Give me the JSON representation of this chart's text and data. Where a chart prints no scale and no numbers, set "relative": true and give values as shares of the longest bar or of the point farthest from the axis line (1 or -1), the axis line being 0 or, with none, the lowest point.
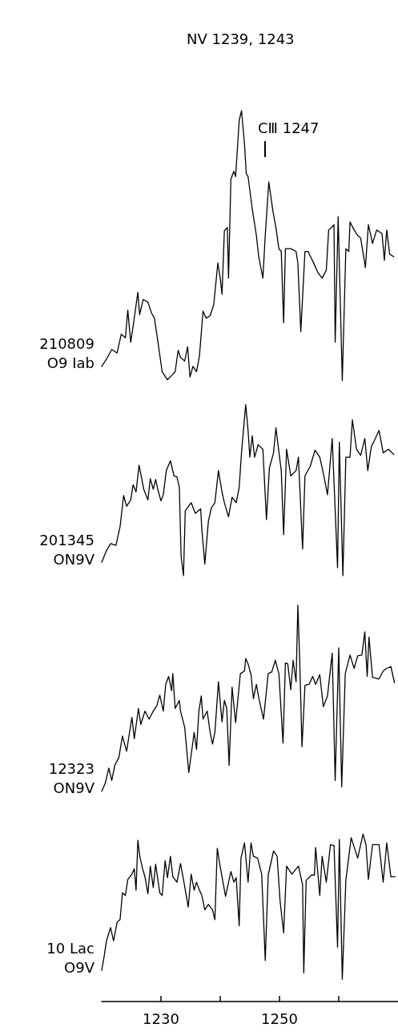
{
  "chart_data": {
    "type": "line",
    "relative": true,
    "title": "NⅤ 1239, 1243",
    "annotations": [
      "CⅢ 1247"
    ],
    "xlim": [
      1220,
      1270
    ],
    "xticks": [
      1230,
      {
        "value": 1240,
        "label": null
      },
      1250,
      {
        "value": 1260,
        "label": null
      }
    ],
    "grid": false,
    "legend": false,
    "marker": "none",
    "line_style": "solid",
    "series": [
      {
        "name": "210809\nO9 Iab",
        "color": "#000000",
        "x": [
          1220.0,
          1220.8,
          1221.7,
          1222.6,
          1223.3,
          1224.0,
          1224.4,
          1224.9,
          1225.3,
          1226.1,
          1226.4,
          1227.0,
          1227.8,
          1228.4,
          1228.9,
          1229.5,
          1230.2,
          1231.1,
          1232.0,
          1232.4,
          1232.9,
          1233.3,
          1234.0,
          1234.5,
          1234.9,
          1235.4,
          1236.0,
          1236.5,
          1237.1,
          1237.6,
          1238.3,
          1238.9,
          1239.6,
          1240.0,
          1240.3,
          1240.7,
          1241.2,
          1241.4,
          1241.8,
          1242.3,
          1242.6,
          1243.2,
          1243.6,
          1244.1,
          1244.4,
          1244.7,
          1245.4,
          1246.1,
          1246.5,
          1247.2,
          1247.6,
          1248.2,
          1248.9,
          1249.4,
          1249.9,
          1250.3,
          1250.7,
          1251.0,
          1251.9,
          1252.8,
          1253.1,
          1253.6,
          1254.3,
          1254.8,
          1255.7,
          1256.5,
          1257.2,
          1257.9,
          1258.3,
          1258.8,
          1259.2,
          1259.4,
          1259.9,
          1260.6,
          1261.2,
          1261.7,
          1261.9,
          1262.6,
          1263.2,
          1263.7,
          1264.5,
          1265.0,
          1265.7,
          1266.4,
          1267.3,
          1267.7,
          1268.1,
          1268.6,
          1269.3
        ],
        "values": [
          0.713,
          0.721,
          0.732,
          0.728,
          0.749,
          0.745,
          0.776,
          0.74,
          0.758,
          0.796,
          0.771,
          0.788,
          0.785,
          0.773,
          0.767,
          0.74,
          0.707,
          0.698,
          0.704,
          0.707,
          0.731,
          0.723,
          0.719,
          0.735,
          0.701,
          0.713,
          0.707,
          0.725,
          0.775,
          0.767,
          0.77,
          0.782,
          0.829,
          0.812,
          0.794,
          0.865,
          0.869,
          0.812,
          0.923,
          0.932,
          0.926,
          0.989,
          1.0,
          0.962,
          0.929,
          0.926,
          0.89,
          0.86,
          0.836,
          0.812,
          0.86,
          0.92,
          0.887,
          0.869,
          0.845,
          0.842,
          0.762,
          0.845,
          0.845,
          0.842,
          0.829,
          0.752,
          0.842,
          0.842,
          0.83,
          0.818,
          0.812,
          0.821,
          0.866,
          0.869,
          0.872,
          0.74,
          0.881,
          0.697,
          0.845,
          0.842,
          0.875,
          0.866,
          0.86,
          0.857,
          0.824,
          0.872,
          0.851,
          0.866,
          0.862,
          0.832,
          0.866,
          0.839,
          0.836
        ]
      },
      {
        "name": "201345\nON9Ⅴ",
        "color": "#000000",
        "x": [
          1220.0,
          1220.8,
          1221.5,
          1222.4,
          1223.1,
          1223.7,
          1224.2,
          1224.9,
          1225.3,
          1225.8,
          1226.3,
          1227.1,
          1227.8,
          1228.2,
          1228.7,
          1229.1,
          1229.5,
          1230.0,
          1230.4,
          1230.9,
          1231.6,
          1232.2,
          1232.7,
          1233.1,
          1233.4,
          1233.8,
          1234.1,
          1235.1,
          1235.8,
          1236.7,
          1236.9,
          1237.4,
          1238.0,
          1238.5,
          1239.1,
          1239.7,
          1240.3,
          1240.7,
          1241.4,
          1242.0,
          1242.7,
          1243.2,
          1243.6,
          1244.3,
          1244.7,
          1245.0,
          1245.4,
          1245.8,
          1246.4,
          1247.2,
          1247.8,
          1248.3,
          1249.0,
          1249.4,
          1249.9,
          1250.3,
          1250.7,
          1251.2,
          1251.9,
          1252.8,
          1253.2,
          1253.9,
          1254.3,
          1255.2,
          1256.0,
          1256.8,
          1257.4,
          1258.1,
          1258.9,
          1259.8,
          1260.1,
          1260.7,
          1261.2,
          1261.9,
          1262.3,
          1263.0,
          1263.7,
          1264.4,
          1264.9,
          1265.5,
          1266.1,
          1266.8,
          1267.5,
          1268.4,
          1269.3
        ],
        "values": [
          0.493,
          0.506,
          0.514,
          0.512,
          0.533,
          0.568,
          0.556,
          0.563,
          0.58,
          0.572,
          0.602,
          0.575,
          0.563,
          0.587,
          0.575,
          0.586,
          0.574,
          0.562,
          0.569,
          0.596,
          0.607,
          0.59,
          0.589,
          0.577,
          0.5,
          0.478,
          0.551,
          0.56,
          0.548,
          0.553,
          0.53,
          0.491,
          0.539,
          0.554,
          0.56,
          0.596,
          0.572,
          0.56,
          0.544,
          0.566,
          0.56,
          0.577,
          0.617,
          0.67,
          0.641,
          0.611,
          0.635,
          0.611,
          0.625,
          0.62,
          0.541,
          0.599,
          0.616,
          0.644,
          0.617,
          0.596,
          0.524,
          0.62,
          0.59,
          0.596,
          0.611,
          0.508,
          0.59,
          0.601,
          0.619,
          0.611,
          0.593,
          0.569,
          0.632,
          0.487,
          0.628,
          0.478,
          0.611,
          0.611,
          0.653,
          0.62,
          0.613,
          0.632,
          0.596,
          0.623,
          0.631,
          0.641,
          0.616,
          0.62,
          0.614
        ]
      },
      {
        "name": "12323\nON9Ⅴ",
        "color": "#000000",
        "x": [
          1220.0,
          1220.6,
          1221.2,
          1221.7,
          1222.2,
          1222.9,
          1223.5,
          1224.2,
          1225.1,
          1225.5,
          1226.2,
          1226.6,
          1227.3,
          1228.0,
          1228.7,
          1229.3,
          1229.8,
          1230.4,
          1230.8,
          1231.3,
          1231.8,
          1232.0,
          1232.4,
          1233.1,
          1233.3,
          1234.0,
          1234.7,
          1235.6,
          1236.0,
          1236.4,
          1236.8,
          1237.1,
          1237.8,
          1238.3,
          1238.7,
          1239.1,
          1239.7,
          1240.3,
          1240.7,
          1241.1,
          1241.5,
          1242.0,
          1242.6,
          1243.4,
          1244.1,
          1244.3,
          1244.7,
          1245.2,
          1245.6,
          1246.1,
          1246.5,
          1247.3,
          1248.1,
          1248.7,
          1249.3,
          1249.9,
          1250.6,
          1251.0,
          1251.4,
          1251.9,
          1252.3,
          1252.8,
          1253.1,
          1253.4,
          1253.8,
          1254.3,
          1255.0,
          1255.6,
          1256.1,
          1256.8,
          1257.4,
          1258.1,
          1258.9,
          1259.4,
          1260.0,
          1260.5,
          1261.1,
          1261.9,
          1262.6,
          1263.2,
          1263.9,
          1264.4,
          1264.8,
          1265.1,
          1265.7,
          1266.8,
          1267.5,
          1268.1,
          1268.8,
          1269.4
        ],
        "values": [
          0.236,
          0.245,
          0.262,
          0.248,
          0.265,
          0.274,
          0.298,
          0.281,
          0.319,
          0.295,
          0.329,
          0.311,
          0.326,
          0.317,
          0.326,
          0.332,
          0.344,
          0.326,
          0.356,
          0.365,
          0.349,
          0.368,
          0.329,
          0.338,
          0.326,
          0.308,
          0.257,
          0.302,
          0.283,
          0.326,
          0.343,
          0.317,
          0.326,
          0.302,
          0.289,
          0.302,
          0.359,
          0.314,
          0.338,
          0.329,
          0.265,
          0.353,
          0.313,
          0.368,
          0.371,
          0.385,
          0.379,
          0.367,
          0.34,
          0.356,
          0.341,
          0.317,
          0.368,
          0.37,
          0.383,
          0.368,
          0.29,
          0.38,
          0.379,
          0.35,
          0.383,
          0.359,
          0.445,
          0.386,
          0.286,
          0.355,
          0.356,
          0.365,
          0.356,
          0.367,
          0.331,
          0.343,
          0.391,
          0.248,
          0.397,
          0.241,
          0.368,
          0.389,
          0.374,
          0.388,
          0.389,
          0.415,
          0.365,
          0.409,
          0.364,
          0.362,
          0.371,
          0.374,
          0.376,
          0.358
        ]
      },
      {
        "name": "10 Lac\nO9Ⅴ",
        "color": "#000000",
        "x": [
          1220.0,
          1220.4,
          1220.8,
          1221.5,
          1222.0,
          1222.6,
          1223.1,
          1223.5,
          1224.0,
          1224.4,
          1225.1,
          1225.5,
          1225.8,
          1226.1,
          1226.4,
          1226.9,
          1227.3,
          1227.8,
          1228.2,
          1228.7,
          1229.1,
          1229.8,
          1230.2,
          1230.7,
          1231.1,
          1231.6,
          1232.0,
          1232.7,
          1233.3,
          1233.8,
          1234.6,
          1235.1,
          1235.6,
          1236.0,
          1236.5,
          1236.9,
          1237.4,
          1238.0,
          1238.7,
          1239.1,
          1239.5,
          1240.0,
          1240.9,
          1241.8,
          1242.3,
          1242.7,
          1243.2,
          1243.5,
          1244.1,
          1244.7,
          1245.2,
          1245.6,
          1246.3,
          1247.0,
          1247.6,
          1248.1,
          1249.0,
          1249.6,
          1250.1,
          1250.7,
          1251.2,
          1252.1,
          1253.2,
          1253.9,
          1254.1,
          1254.5,
          1255.4,
          1255.9,
          1256.1,
          1256.8,
          1257.2,
          1257.9,
          1258.6,
          1259.2,
          1259.8,
          1260.1,
          1260.6,
          1261.2,
          1262.1,
          1263.2,
          1264.1,
          1264.6,
          1265.0,
          1265.7,
          1266.8,
          1267.5,
          1268.1,
          1268.8,
          1269.5
        ],
        "values": [
          0.035,
          0.05,
          0.068,
          0.083,
          0.068,
          0.089,
          0.092,
          0.122,
          0.119,
          0.137,
          0.143,
          0.149,
          0.125,
          0.181,
          0.164,
          0.149,
          0.14,
          0.121,
          0.152,
          0.128,
          0.154,
          0.122,
          0.119,
          0.158,
          0.139,
          0.163,
          0.14,
          0.134,
          0.155,
          0.137,
          0.106,
          0.143,
          0.125,
          0.134,
          0.125,
          0.119,
          0.103,
          0.109,
          0.103,
          0.092,
          0.172,
          0.151,
          0.118,
          0.146,
          0.134,
          0.139,
          0.085,
          0.161,
          0.178,
          0.134,
          0.178,
          0.163,
          0.161,
          0.143,
          0.046,
          0.142,
          0.169,
          0.163,
          0.113,
          0.077,
          0.152,
          0.143,
          0.152,
          0.131,
          0.032,
          0.136,
          0.142,
          0.142,
          0.173,
          0.119,
          0.163,
          0.134,
          0.176,
          0.175,
          0.061,
          0.182,
          0.025,
          0.136,
          0.184,
          0.161,
          0.188,
          0.176,
          0.137,
          0.176,
          0.176,
          0.134,
          0.178,
          0.14,
          0.14
        ]
      }
    ]
  }
}
